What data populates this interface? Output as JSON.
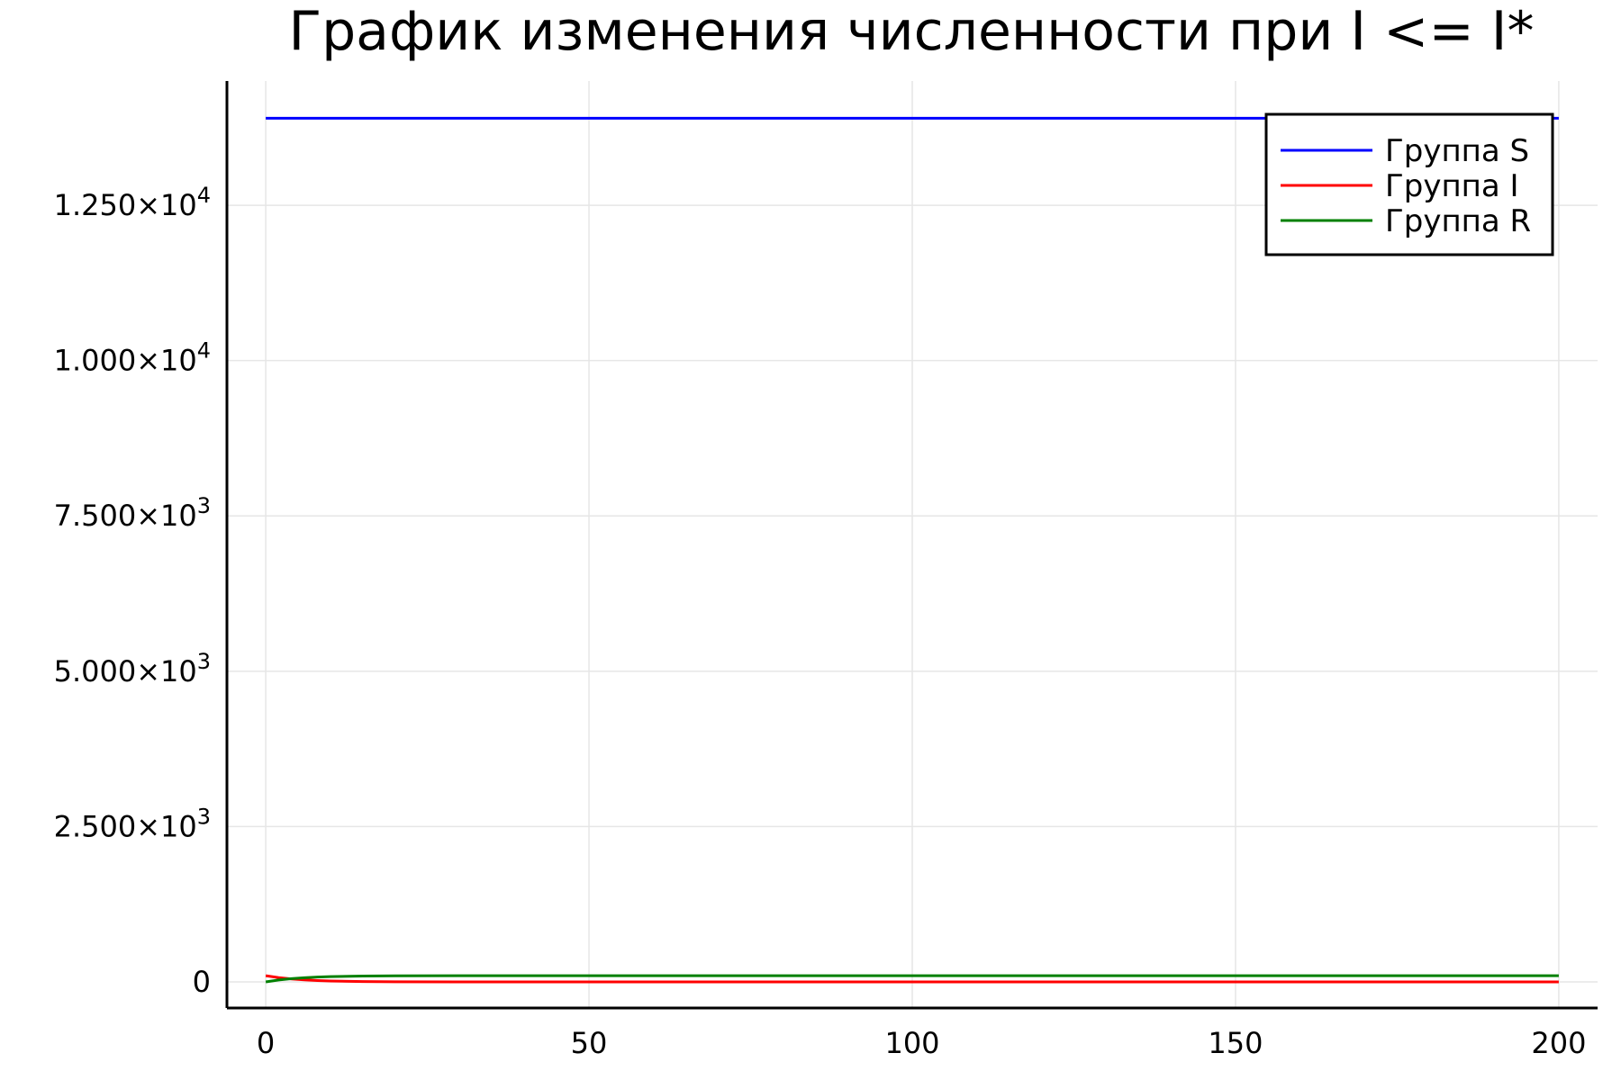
{
  "chart_data": {
    "type": "line",
    "title": "График изменения численности при I <= I*",
    "xlabel": "",
    "ylabel": "",
    "xlim": [
      -6,
      206
    ],
    "ylim": [
      -420,
      14500
    ],
    "grid": true,
    "legend_position": "top-right",
    "x_ticks": [
      {
        "value": 0,
        "label": "0"
      },
      {
        "value": 50,
        "label": "50"
      },
      {
        "value": 100,
        "label": "100"
      },
      {
        "value": 150,
        "label": "150"
      },
      {
        "value": 200,
        "label": "200"
      }
    ],
    "y_ticks": [
      {
        "value": 0,
        "label": "0",
        "exp": ""
      },
      {
        "value": 2500,
        "label": "2.500×10",
        "exp": "3"
      },
      {
        "value": 5000,
        "label": "5.000×10",
        "exp": "3"
      },
      {
        "value": 7500,
        "label": "7.500×10",
        "exp": "3"
      },
      {
        "value": 10000,
        "label": "1.000×10",
        "exp": "4"
      },
      {
        "value": 12500,
        "label": "1.250×10",
        "exp": "4"
      }
    ],
    "series": [
      {
        "name": "Группа S",
        "color": "#0000ff",
        "x": [
          0,
          200
        ],
        "y": [
          13900,
          13900
        ]
      },
      {
        "name": "Группа I",
        "color": "#ff0000",
        "x": [
          0,
          2,
          4,
          6,
          8,
          10,
          15,
          20,
          30,
          40,
          60,
          100,
          150,
          200
        ],
        "y": [
          100,
          70,
          48,
          33,
          22,
          15,
          6,
          2,
          0,
          0,
          0,
          0,
          0,
          0
        ]
      },
      {
        "name": "Группа R",
        "color": "#008000",
        "x": [
          0,
          2,
          4,
          6,
          8,
          10,
          15,
          20,
          30,
          40,
          60,
          100,
          150,
          200
        ],
        "y": [
          0,
          30,
          52,
          67,
          78,
          85,
          94,
          98,
          100,
          100,
          100,
          100,
          100,
          100
        ]
      }
    ]
  }
}
